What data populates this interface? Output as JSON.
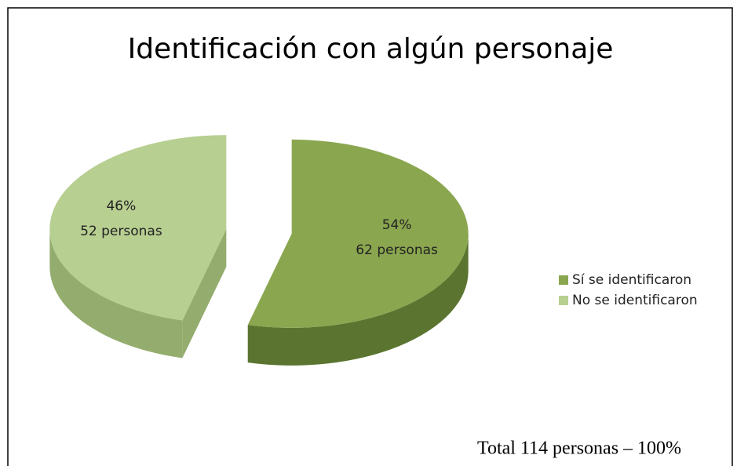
{
  "chart_data": {
    "type": "pie",
    "title": "Identificación con algún personaje",
    "categories": [
      "Sí se identificaron",
      "No se identificaron"
    ],
    "values": [
      54,
      46
    ],
    "value_labels": [
      "54%",
      "46%"
    ],
    "count_labels": [
      "62 personas",
      "52 personas"
    ],
    "colors": [
      "#8aa64f",
      "#b7cf91"
    ],
    "side_colors": [
      "#5b7530",
      "#94ad6e"
    ],
    "legend": "right",
    "annotation": "Total 114 personas – 100%"
  }
}
